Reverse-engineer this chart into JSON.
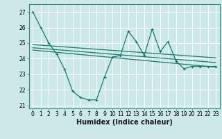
{
  "xlabel": "Humidex (Indice chaleur)",
  "background_color": "#cce8e8",
  "grid_color": "#b0d8d8",
  "line_color": "#1a7a6e",
  "x_values": [
    0,
    1,
    2,
    3,
    4,
    5,
    6,
    7,
    8,
    9,
    10,
    11,
    12,
    13,
    14,
    15,
    16,
    17,
    18,
    19,
    20,
    21,
    22,
    23
  ],
  "main_y": [
    27.0,
    26.0,
    25.0,
    24.3,
    23.3,
    21.9,
    21.5,
    21.35,
    21.35,
    22.8,
    24.1,
    24.2,
    25.75,
    25.1,
    24.2,
    25.9,
    24.45,
    25.1,
    23.85,
    23.35,
    23.5,
    23.5,
    23.5,
    23.5
  ],
  "trend_lines": [
    {
      "x0": 0,
      "y0": 24.9,
      "x1": 23,
      "y1": 24.05
    },
    {
      "x0": 0,
      "y0": 24.7,
      "x1": 23,
      "y1": 23.75
    },
    {
      "x0": 0,
      "y0": 24.55,
      "x1": 23,
      "y1": 23.45
    }
  ],
  "ylim": [
    20.8,
    27.5
  ],
  "yticks": [
    21,
    22,
    23,
    24,
    25,
    26,
    27
  ],
  "xticks": [
    0,
    1,
    2,
    3,
    4,
    5,
    6,
    7,
    8,
    9,
    10,
    11,
    12,
    13,
    14,
    15,
    16,
    17,
    18,
    19,
    20,
    21,
    22,
    23
  ],
  "tick_fontsize": 5.5,
  "xlabel_fontsize": 7.0
}
